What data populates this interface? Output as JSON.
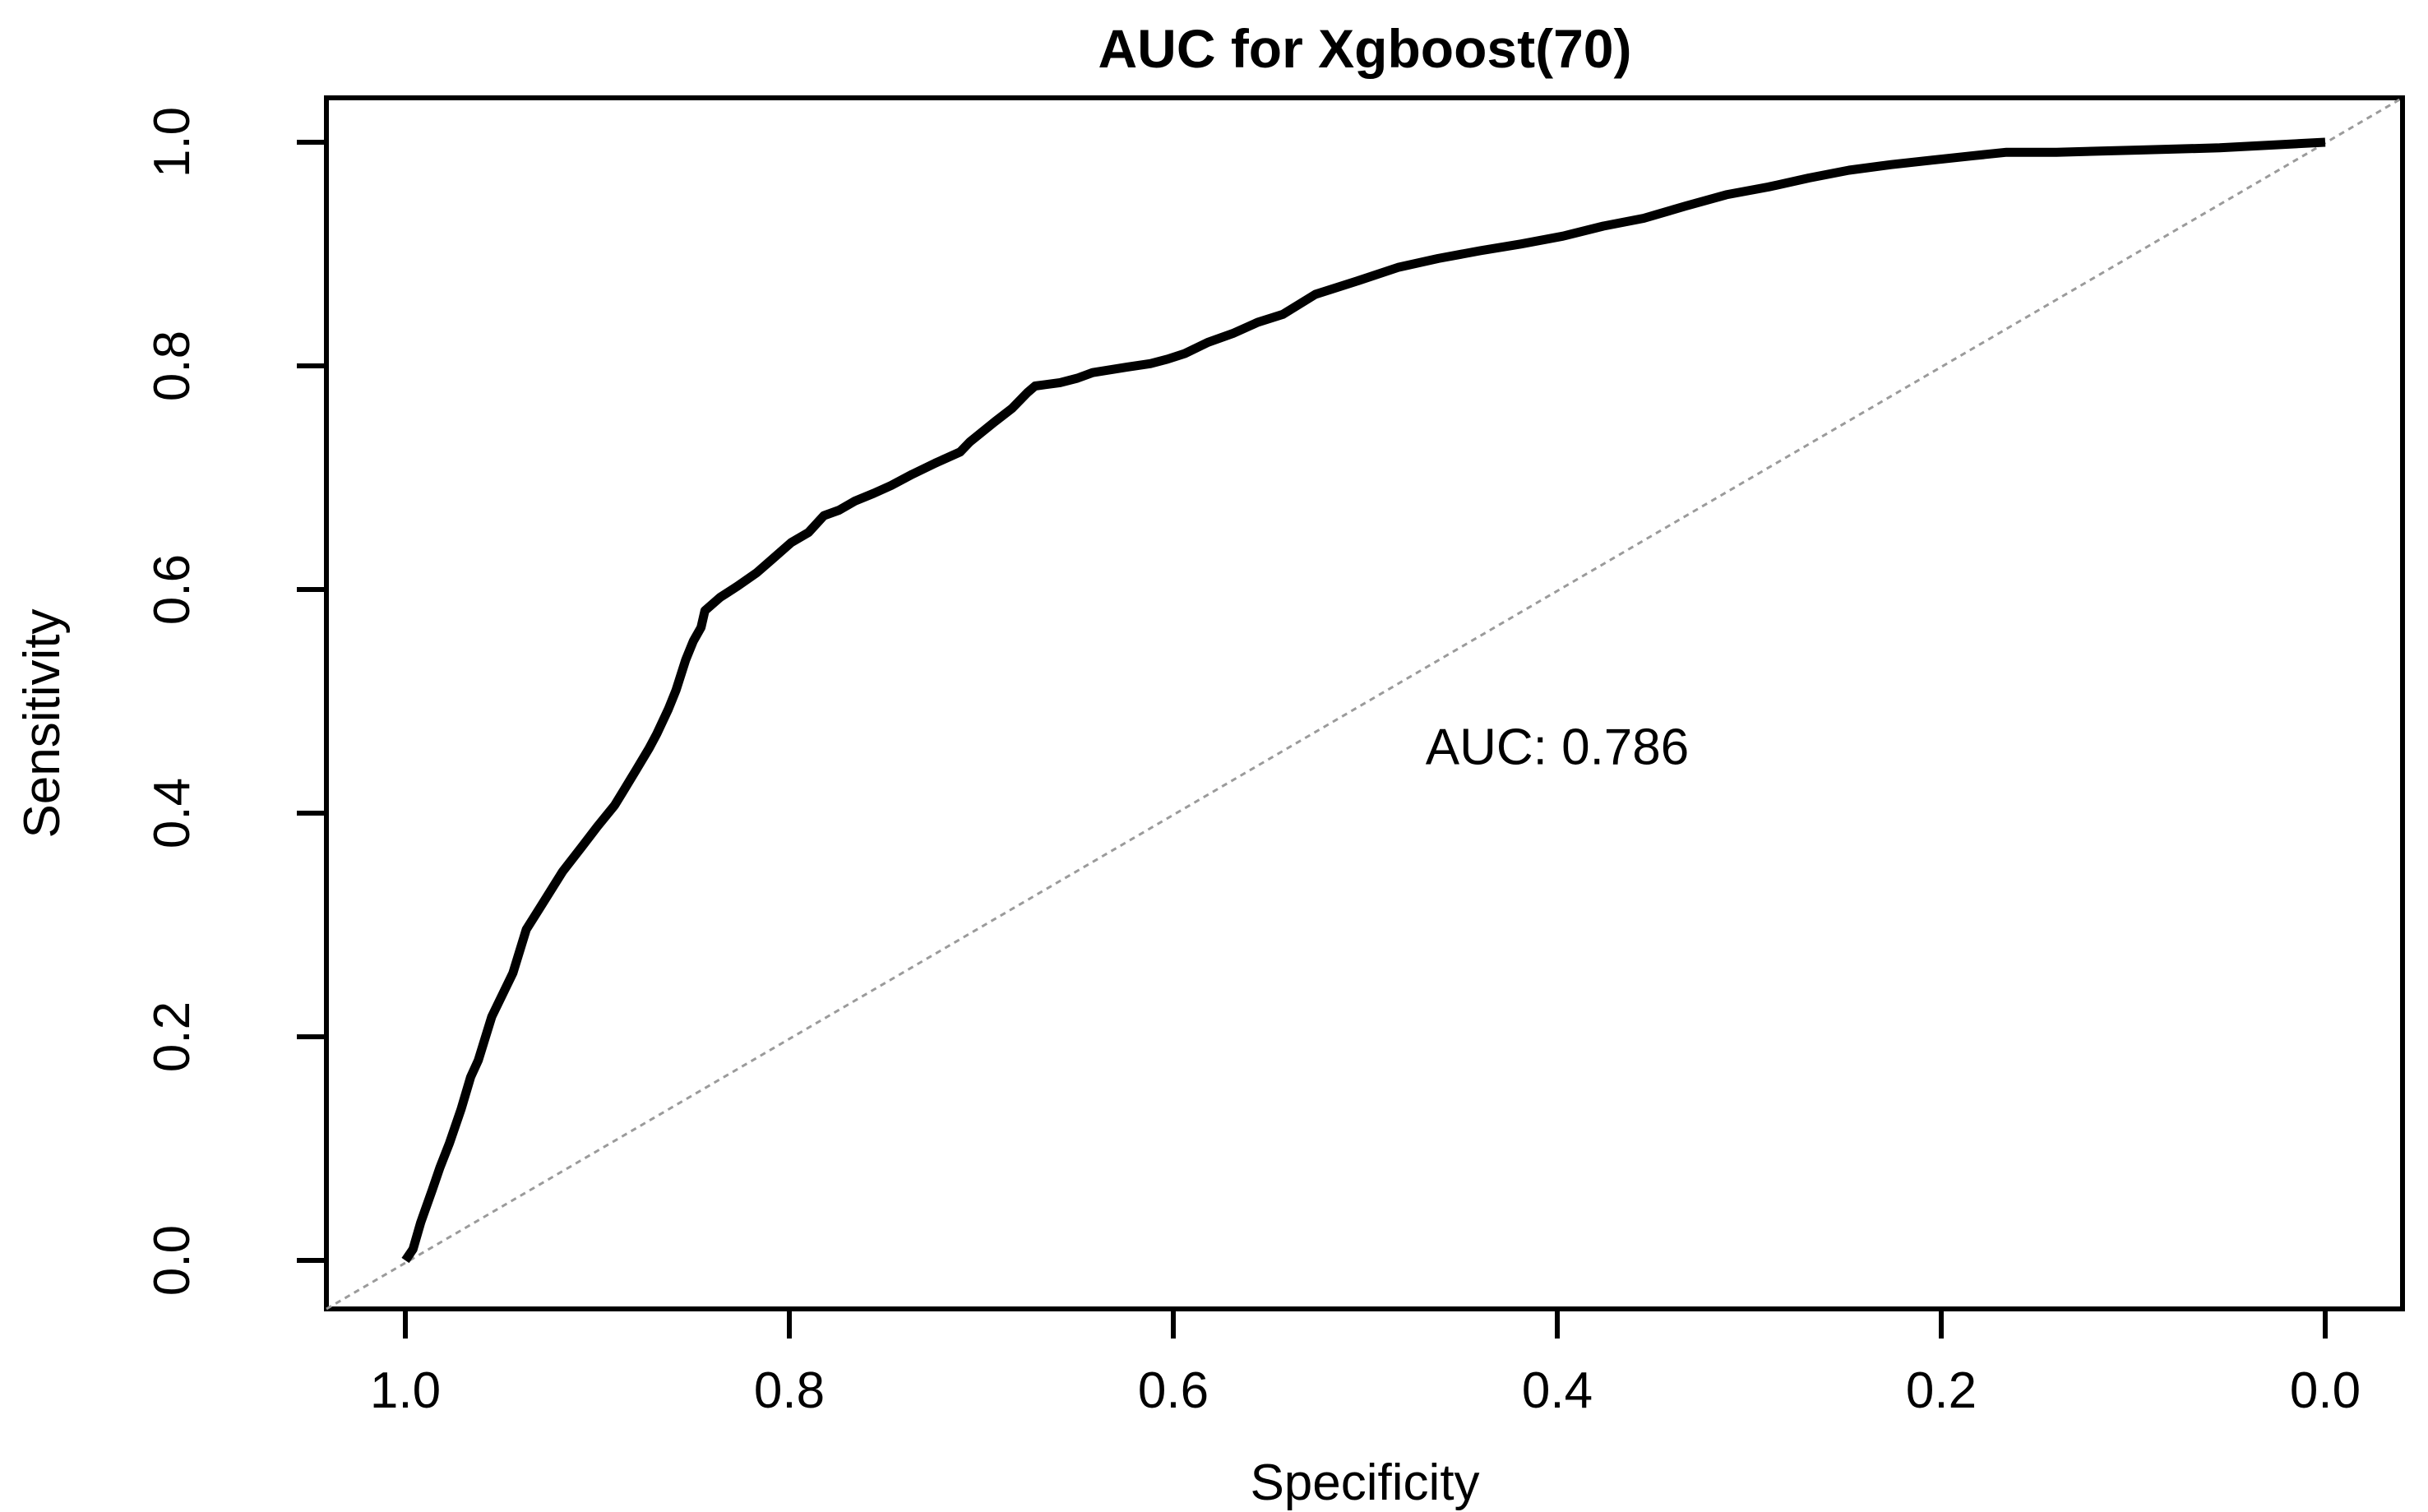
{
  "chart_data": {
    "type": "line",
    "title": "AUC for Xgboost(70)",
    "xlabel": "Specificity",
    "ylabel": "Sensitivity",
    "grid": false,
    "background_color": "#ffffff",
    "x_axis": {
      "label": "Specificity",
      "reversed": true,
      "range": [
        1.04,
        -0.04
      ],
      "tick_values": [
        1.0,
        0.8,
        0.6,
        0.4,
        0.2,
        0.0
      ],
      "tick_labels": [
        "1.0",
        "0.8",
        "0.6",
        "0.4",
        "0.2",
        "0.0"
      ]
    },
    "y_axis": {
      "label": "Sensitivity",
      "range": [
        -0.04,
        1.04
      ],
      "tick_values": [
        0.0,
        0.2,
        0.4,
        0.6,
        0.8,
        1.0
      ],
      "tick_labels": [
        "0.0",
        "0.2",
        "0.4",
        "0.6",
        "0.8",
        "1.0"
      ]
    },
    "series": [
      {
        "name": "ROC curve",
        "color": "#000000",
        "line_width": 11,
        "x_key": "specificity",
        "y_key": "sensitivity",
        "points": [
          [
            1.0,
            0.0
          ],
          [
            0.996,
            0.01
          ],
          [
            0.992,
            0.034
          ],
          [
            0.986,
            0.063
          ],
          [
            0.982,
            0.083
          ],
          [
            0.977,
            0.105
          ],
          [
            0.971,
            0.135
          ],
          [
            0.966,
            0.164
          ],
          [
            0.962,
            0.179
          ],
          [
            0.955,
            0.218
          ],
          [
            0.944,
            0.257
          ],
          [
            0.937,
            0.296
          ],
          [
            0.93,
            0.315
          ],
          [
            0.918,
            0.348
          ],
          [
            0.908,
            0.37
          ],
          [
            0.9,
            0.388
          ],
          [
            0.891,
            0.407
          ],
          [
            0.886,
            0.421
          ],
          [
            0.88,
            0.438
          ],
          [
            0.873,
            0.458
          ],
          [
            0.869,
            0.471
          ],
          [
            0.863,
            0.493
          ],
          [
            0.859,
            0.51
          ],
          [
            0.854,
            0.537
          ],
          [
            0.85,
            0.554
          ],
          [
            0.846,
            0.566
          ],
          [
            0.844,
            0.581
          ],
          [
            0.836,
            0.593
          ],
          [
            0.827,
            0.603
          ],
          [
            0.817,
            0.615
          ],
          [
            0.809,
            0.627
          ],
          [
            0.799,
            0.642
          ],
          [
            0.79,
            0.651
          ],
          [
            0.782,
            0.666
          ],
          [
            0.774,
            0.671
          ],
          [
            0.766,
            0.679
          ],
          [
            0.756,
            0.686
          ],
          [
            0.747,
            0.693
          ],
          [
            0.736,
            0.703
          ],
          [
            0.724,
            0.713
          ],
          [
            0.711,
            0.723
          ],
          [
            0.706,
            0.732
          ],
          [
            0.693,
            0.75
          ],
          [
            0.684,
            0.762
          ],
          [
            0.676,
            0.776
          ],
          [
            0.672,
            0.782
          ],
          [
            0.659,
            0.785
          ],
          [
            0.65,
            0.789
          ],
          [
            0.642,
            0.794
          ],
          [
            0.624,
            0.799
          ],
          [
            0.612,
            0.802
          ],
          [
            0.603,
            0.806
          ],
          [
            0.594,
            0.811
          ],
          [
            0.582,
            0.821
          ],
          [
            0.569,
            0.829
          ],
          [
            0.556,
            0.839
          ],
          [
            0.543,
            0.846
          ],
          [
            0.526,
            0.864
          ],
          [
            0.504,
            0.876
          ],
          [
            0.483,
            0.888
          ],
          [
            0.462,
            0.896
          ],
          [
            0.44,
            0.903
          ],
          [
            0.419,
            0.909
          ],
          [
            0.397,
            0.916
          ],
          [
            0.376,
            0.925
          ],
          [
            0.355,
            0.932
          ],
          [
            0.333,
            0.943
          ],
          [
            0.312,
            0.953
          ],
          [
            0.29,
            0.96
          ],
          [
            0.269,
            0.968
          ],
          [
            0.248,
            0.975
          ],
          [
            0.226,
            0.98
          ],
          [
            0.205,
            0.984
          ],
          [
            0.183,
            0.988
          ],
          [
            0.166,
            0.991
          ],
          [
            0.14,
            0.991
          ],
          [
            0.097,
            0.993
          ],
          [
            0.055,
            0.995
          ],
          [
            0.0,
            1.0
          ]
        ]
      }
    ],
    "reference_line": {
      "name": "chance diagonal",
      "from": [
        1.0,
        0.0
      ],
      "to": [
        0.0,
        1.0
      ],
      "extends_to_plot_corners": true,
      "color": "#9b9b9b",
      "line_width": 3,
      "dash": "7 6"
    },
    "annotation": {
      "text": "AUC: 0.786",
      "auc_value": 0.786,
      "at": {
        "specificity": 0.4,
        "sensitivity": 0.46
      }
    },
    "colors": {
      "curve": "#000000",
      "axis": "#000000",
      "text": "#000000",
      "diagonal": "#9b9b9b"
    }
  }
}
